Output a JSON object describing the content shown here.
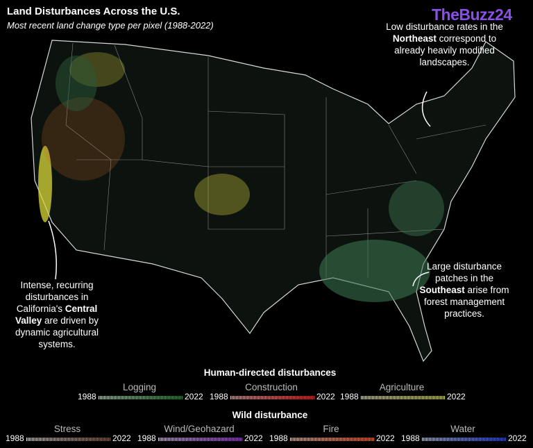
{
  "header": {
    "title": "Land Disturbances Across the U.S.",
    "subtitle": "Most recent land change type per pixel (1988-2022)"
  },
  "watermark": "TheBuzz24",
  "annotations": [
    {
      "runs": [
        {
          "text": "Low disturbance rates in the ",
          "bold": false
        },
        {
          "text": "Northeast",
          "bold": true
        },
        {
          "text": " correspond to already heavily modified landscapes.",
          "bold": false
        }
      ]
    },
    {
      "runs": [
        {
          "text": "Large disturbance patches in the ",
          "bold": false
        },
        {
          "text": "Southeast",
          "bold": true
        },
        {
          "text": " arise from forest management practices.",
          "bold": false
        }
      ]
    },
    {
      "runs": [
        {
          "text": "Intense, recurring disturbances in California's ",
          "bold": false
        },
        {
          "text": "Central Valley",
          "bold": true
        },
        {
          "text": " are driven by dynamic agricultural systems.",
          "bold": false
        }
      ]
    }
  ],
  "legend": [
    {
      "title": "Human-directed disturbances",
      "items": [
        {
          "name": "Logging",
          "start": 1988,
          "end": 2022,
          "colors": [
            "#d5eedc",
            "#2f8a45"
          ]
        },
        {
          "name": "Construction",
          "start": 1988,
          "end": 2022,
          "colors": [
            "#f2c8c8",
            "#d42a2a"
          ]
        },
        {
          "name": "Agriculture",
          "start": 1988,
          "end": 2022,
          "colors": [
            "#f4f4c0",
            "#e4e42a"
          ]
        }
      ]
    },
    {
      "title": "Wild disturbance",
      "items": [
        {
          "name": "Stress",
          "start": 1988,
          "end": 2022,
          "colors": [
            "#eeeeee",
            "#8a6a4a"
          ]
        },
        {
          "name": "Wind/Geohazard",
          "start": 1988,
          "end": 2022,
          "colors": [
            "#e8d8f2",
            "#9a4cc2"
          ]
        },
        {
          "name": "Fire",
          "start": 1988,
          "end": 2022,
          "colors": [
            "#f8dcc0",
            "#e8741e"
          ]
        },
        {
          "name": "Water",
          "start": 1988,
          "end": 2022,
          "colors": [
            "#d8e4f4",
            "#2a56c8"
          ]
        }
      ]
    }
  ]
}
